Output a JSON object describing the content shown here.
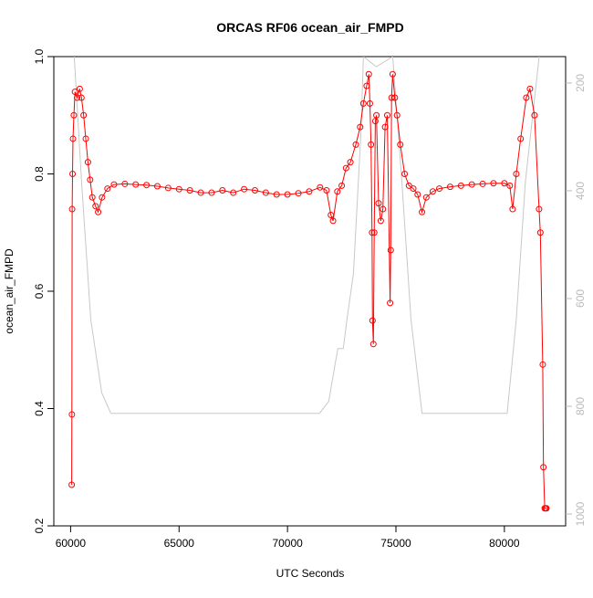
{
  "chart_data": {
    "type": "line",
    "title": "ORCAS RF06 ocean_air_FMPD",
    "xlabel": "UTC Seconds",
    "ylabel": "ocean_air_FMPD",
    "xlim": [
      59226,
      82824
    ],
    "xticks": [
      60000,
      65000,
      70000,
      75000,
      80000
    ],
    "ylim": [
      0.2,
      1.0
    ],
    "yticks": [
      0.2,
      0.4,
      0.6,
      0.8,
      {
        "value": 1.0,
        "label": "1.0"
      }
    ],
    "y2lim": [
      1022,
      151
    ],
    "y2ticks": [
      200,
      400,
      600,
      800,
      1000
    ],
    "series": [
      {
        "color": "#ff0000",
        "marker": "circle",
        "x": [
          60050,
          60060,
          60070,
          60090,
          60110,
          60150,
          60200,
          60300,
          60420,
          60500,
          60600,
          60700,
          60800,
          60900,
          61000,
          61150,
          61270,
          61450,
          61700,
          62000,
          62500,
          63000,
          63500,
          64000,
          64500,
          65000,
          65500,
          66000,
          66500,
          67000,
          67500,
          68000,
          68500,
          69000,
          69500,
          70000,
          70500,
          71000,
          71500,
          71800,
          72000,
          72100,
          72300,
          72500,
          72700,
          72900,
          73150,
          73350,
          73500,
          73650,
          73750,
          73800,
          73850,
          73900,
          73920,
          73960,
          74000,
          74050,
          74100,
          74200,
          74300,
          74400,
          74500,
          74600,
          74730,
          74760,
          74800,
          74850,
          74950,
          75050,
          75200,
          75400,
          75600,
          75800,
          76000,
          76200,
          76400,
          76700,
          77000,
          77500,
          78000,
          78500,
          79000,
          79500,
          80000,
          80250,
          80380,
          80550,
          80750,
          81010,
          81180,
          81390,
          81600,
          81660,
          81770,
          81800,
          81860,
          81900,
          81940
        ],
        "values": [
          0.27,
          0.39,
          0.74,
          0.8,
          0.86,
          0.9,
          0.94,
          0.93,
          0.945,
          0.93,
          0.9,
          0.86,
          0.82,
          0.79,
          0.76,
          0.745,
          0.735,
          0.76,
          0.775,
          0.782,
          0.783,
          0.782,
          0.781,
          0.779,
          0.776,
          0.774,
          0.772,
          0.768,
          0.768,
          0.772,
          0.768,
          0.774,
          0.772,
          0.768,
          0.765,
          0.765,
          0.767,
          0.77,
          0.777,
          0.772,
          0.73,
          0.72,
          0.77,
          0.78,
          0.81,
          0.82,
          0.85,
          0.88,
          0.92,
          0.95,
          0.97,
          0.92,
          0.85,
          0.7,
          0.55,
          0.51,
          0.7,
          0.89,
          0.9,
          0.75,
          0.72,
          0.74,
          0.88,
          0.9,
          0.58,
          0.67,
          0.93,
          0.97,
          0.93,
          0.9,
          0.85,
          0.8,
          0.78,
          0.775,
          0.765,
          0.735,
          0.76,
          0.77,
          0.775,
          0.778,
          0.78,
          0.782,
          0.783,
          0.784,
          0.784,
          0.78,
          0.74,
          0.8,
          0.86,
          0.93,
          0.945,
          0.9,
          0.74,
          0.7,
          0.475,
          0.3,
          0.23,
          0.23,
          0.23
        ]
      },
      {
        "color": "#c8c8c8",
        "axis": "y2",
        "x": [
          60169,
          60506,
          60928,
          61435,
          61857,
          71477,
          71899,
          72321,
          72574,
          72743,
          73038,
          73376,
          73502,
          74093,
          74852,
          75274,
          75696,
          76203,
          80127,
          80549,
          80970,
          81603
        ],
        "values": [
          151,
          383,
          639,
          775,
          813,
          813,
          791,
          693,
          693,
          639,
          554,
          300,
          151,
          170,
          151,
          383,
          639,
          813,
          813,
          639,
          383,
          151
        ]
      }
    ]
  }
}
